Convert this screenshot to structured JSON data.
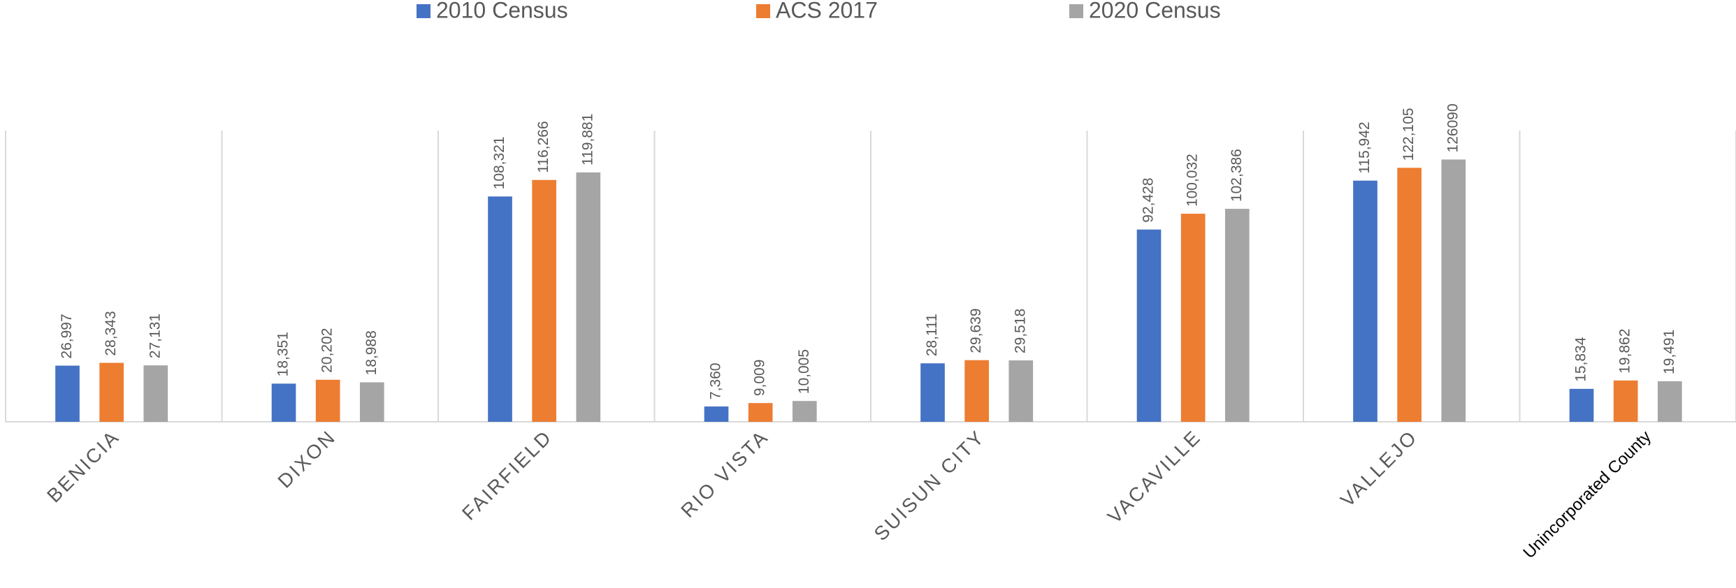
{
  "chart_data": {
    "type": "bar",
    "categories": [
      "BENICIA",
      "DIXON",
      "FAIRFIELD",
      "RIO VISTA",
      "SUISUN CITY",
      "VACAVILLE",
      "VALLEJO",
      "Unincorporated County"
    ],
    "series": [
      {
        "name": "2010 Census",
        "color": "#4472c4",
        "values": [
          26997,
          18351,
          108321,
          7360,
          28111,
          92428,
          115942,
          15834
        ],
        "value_labels": [
          "26,997",
          "18,351",
          "108,321",
          "7,360",
          "28,111",
          "92,428",
          "115,942",
          "15,834"
        ]
      },
      {
        "name": "ACS 2017",
        "color": "#ed7d31",
        "values": [
          28343,
          20202,
          116266,
          9009,
          29639,
          100032,
          122105,
          19862
        ],
        "value_labels": [
          "28,343",
          "20,202",
          "116,266",
          "9,009",
          "29,639",
          "100,032",
          "122,105",
          "19,862"
        ]
      },
      {
        "name": "2020 Census",
        "color": "#a5a5a5",
        "values": [
          27131,
          18988,
          119881,
          10005,
          29518,
          102386,
          126090,
          19491
        ],
        "value_labels": [
          "27,131",
          "18,988",
          "119,881",
          "10,005",
          "29,518",
          "102,386",
          "126090",
          "19,491"
        ]
      }
    ],
    "ylim": [
      0,
      140000
    ]
  }
}
